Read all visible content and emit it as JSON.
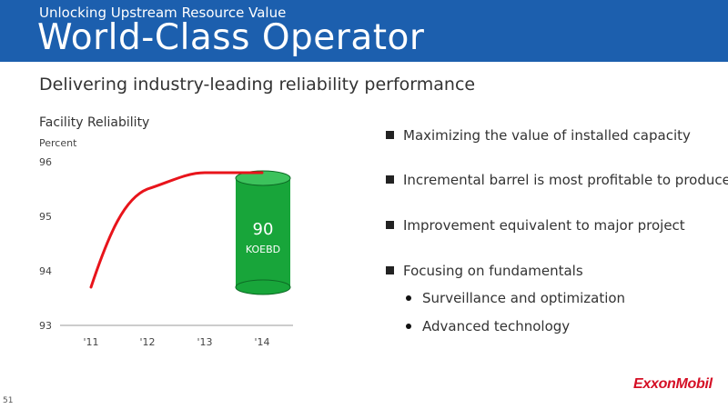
{
  "header": {
    "subtitle": "Unlocking Upstream Resource Value",
    "title": "World-Class Operator"
  },
  "slide": {
    "subtitle": "Delivering industry-leading reliability performance",
    "page_number": "51",
    "logo_text": "ExxonMobil"
  },
  "chart_data": {
    "type": "line",
    "title": "Facility Reliability",
    "ylabel": "Percent",
    "xlabel": "",
    "categories": [
      "'11",
      "'12",
      "'13",
      "'14"
    ],
    "series": [
      {
        "values": [
          93.7,
          95.5,
          95.8,
          95.8
        ]
      }
    ],
    "ylim": [
      93,
      96
    ],
    "yticks": [
      93,
      94,
      95,
      96
    ],
    "grid": false,
    "annotation": {
      "value": "90",
      "unit": "KOEBD",
      "shape": "green cylinder"
    },
    "colors": {
      "line": "#e8141b",
      "cylinder": "#18a53a"
    }
  },
  "bullets": [
    {
      "text": "Maximizing the value of installed capacity"
    },
    {
      "text": "Incremental barrel is most profitable to produce"
    },
    {
      "text": "Improvement equivalent to major project"
    },
    {
      "text": "Focusing on fundamentals"
    }
  ],
  "sub_bullets": [
    {
      "text": "Surveillance and optimization"
    },
    {
      "text": "Advanced technology"
    }
  ],
  "colors": {
    "header": "#1c5fae",
    "brand_red": "#d50f25"
  }
}
